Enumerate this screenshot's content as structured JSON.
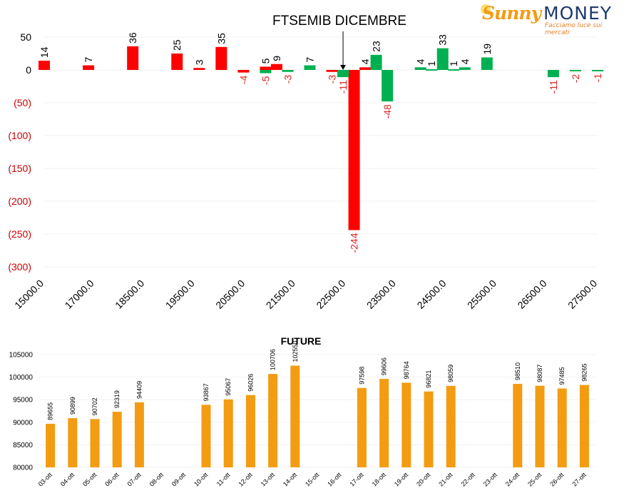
{
  "brand": {
    "name_part1": "Sunny",
    "name_part2": "MONEY",
    "tagline": "Facciamo luce sui mercati"
  },
  "chart_data": [
    {
      "type": "bar",
      "title": "FTSEMIB DICEMBRE",
      "ylim": [
        -300,
        50
      ],
      "yticks": [
        {
          "value": 50,
          "label": "50"
        },
        {
          "value": 0,
          "label": "0"
        },
        {
          "value": -50,
          "label": "(50)"
        },
        {
          "value": -100,
          "label": "(100)"
        },
        {
          "value": -150,
          "label": "(150)"
        },
        {
          "value": -200,
          "label": "(200)"
        },
        {
          "value": -250,
          "label": "(250)"
        },
        {
          "value": -300,
          "label": "(300)"
        }
      ],
      "xlim": [
        15000,
        27500
      ],
      "xtick_labels": [
        "15000.0",
        "17000.0",
        "18500.0",
        "19500.0",
        "20500.0",
        "21500.0",
        "22500.0",
        "23500.0",
        "24500.0",
        "25500.0",
        "26500.0",
        "27500.0"
      ],
      "series": [
        {
          "color": "#ff0000",
          "points": [
            {
              "x": 15000,
              "y": 14
            },
            {
              "x": 16000,
              "y": 7
            },
            {
              "x": 17000,
              "y": 36
            },
            {
              "x": 18000,
              "y": 25
            },
            {
              "x": 18500,
              "y": 3
            },
            {
              "x": 19000,
              "y": 35
            },
            {
              "x": 19500,
              "y": -4
            },
            {
              "x": 20000,
              "y": 5
            },
            {
              "x": 20250,
              "y": 9
            },
            {
              "x": 21500,
              "y": -3
            },
            {
              "x": 22000,
              "y": -244
            },
            {
              "x": 22250,
              "y": 4
            }
          ]
        },
        {
          "color": "#00b050",
          "points": [
            {
              "x": 20000,
              "y": -5
            },
            {
              "x": 20500,
              "y": -3
            },
            {
              "x": 21000,
              "y": 7
            },
            {
              "x": 21750,
              "y": -11
            },
            {
              "x": 22500,
              "y": 23
            },
            {
              "x": 22750,
              "y": -48
            },
            {
              "x": 23500,
              "y": 4
            },
            {
              "x": 23750,
              "y": 1
            },
            {
              "x": 24000,
              "y": 33
            },
            {
              "x": 24250,
              "y": 1
            },
            {
              "x": 24500,
              "y": 4
            },
            {
              "x": 25000,
              "y": 19
            },
            {
              "x": 26500,
              "y": -11
            },
            {
              "x": 27000,
              "y": -2
            },
            {
              "x": 27500,
              "y": -1
            }
          ]
        }
      ],
      "annotation": {
        "text": "",
        "x": 21750,
        "points_to": "arrow from title"
      },
      "grid": true
    },
    {
      "type": "bar",
      "title": "FUTURE",
      "ylim": [
        80000,
        105000
      ],
      "yticks": [
        80000,
        85000,
        90000,
        95000,
        100000,
        105000
      ],
      "color": "#f39c12",
      "categories": [
        "03-ott",
        "04-ott",
        "05-ott",
        "06-ott",
        "07-ott",
        "08-ott",
        "09-ott",
        "10-ott",
        "11-ott",
        "12-ott",
        "13-ott",
        "14-ott",
        "15-ott",
        "16-ott",
        "17-ott",
        "18-ott",
        "19-ott",
        "20-ott",
        "21-ott",
        "22-ott",
        "23-ott",
        "24-ott",
        "25-ott",
        "26-ott",
        "27-ott"
      ],
      "values": [
        89655,
        90899,
        90702,
        92319,
        94409,
        null,
        null,
        93867,
        95067,
        96026,
        100706,
        102550,
        null,
        null,
        97598,
        99606,
        98764,
        96821,
        98059,
        null,
        null,
        98510,
        98087,
        97485,
        98265
      ],
      "value_labels": [
        "89655",
        "90899",
        "90702",
        "92319",
        "94409",
        "",
        "",
        "93867",
        "95067",
        "96026",
        "100706",
        "102550",
        "",
        "",
        "97598",
        "99606",
        "98764",
        "96821",
        "98059",
        "",
        "",
        "98510",
        "98087",
        "97485",
        "98265"
      ]
    }
  ]
}
